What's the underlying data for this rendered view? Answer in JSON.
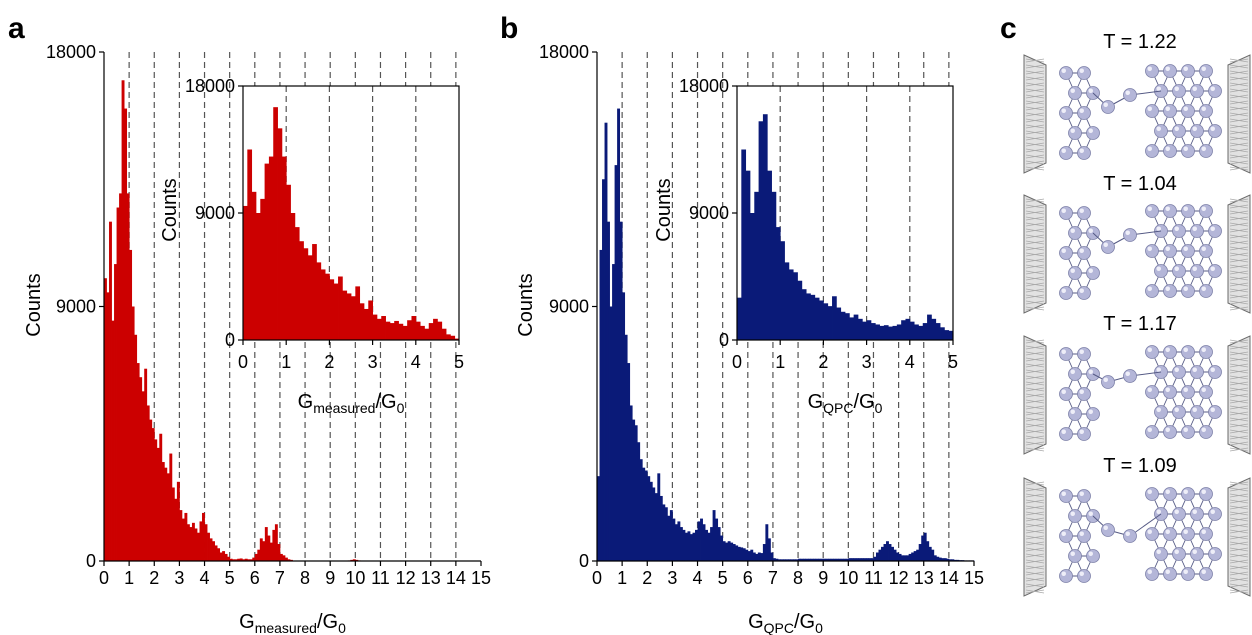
{
  "panels": {
    "a": "a",
    "b": "b",
    "c": "c"
  },
  "colors": {
    "red": "#cc0000",
    "navy": "#0a1a78",
    "atom": "#b4b6d8",
    "electrode": "#a9a9a9"
  },
  "chart_data": [
    {
      "id": "a-main",
      "type": "bar",
      "color": "#cc0000",
      "xlabel_main": "G",
      "xlabel_sub": "measured",
      "xlabel_tail": "/G",
      "xlabel_tail_sub": "0",
      "ylabel": "Counts",
      "xlim": [
        0,
        15
      ],
      "ylim": [
        0,
        18000
      ],
      "xticks": [
        0,
        1,
        2,
        3,
        4,
        5,
        6,
        7,
        8,
        9,
        10,
        11,
        12,
        13,
        14,
        15
      ],
      "yticks": [
        0,
        9000,
        18000
      ],
      "ytick_labels": [
        "0",
        "9000",
        "18000"
      ],
      "gridlines_x": [
        1,
        2,
        3,
        4,
        5,
        6,
        7,
        8,
        9,
        10,
        11,
        12,
        13,
        14
      ],
      "x": [
        0.05,
        0.15,
        0.25,
        0.35,
        0.45,
        0.55,
        0.65,
        0.75,
        0.85,
        0.95,
        1.05,
        1.15,
        1.25,
        1.35,
        1.45,
        1.55,
        1.65,
        1.75,
        1.85,
        1.95,
        2.05,
        2.15,
        2.25,
        2.35,
        2.45,
        2.55,
        2.65,
        2.75,
        2.85,
        2.95,
        3.05,
        3.15,
        3.25,
        3.35,
        3.45,
        3.55,
        3.65,
        3.75,
        3.85,
        3.95,
        4.05,
        4.15,
        4.25,
        4.35,
        4.45,
        4.55,
        4.65,
        4.75,
        4.85,
        4.95,
        5.05,
        5.15,
        5.25,
        5.35,
        5.45,
        5.55,
        5.65,
        5.75,
        5.85,
        5.95,
        6.05,
        6.15,
        6.25,
        6.35,
        6.45,
        6.55,
        6.65,
        6.75,
        6.85,
        6.95,
        7.05,
        7.15,
        7.25,
        7.35,
        7.45,
        9.75,
        9.85,
        9.95,
        10.05,
        10.15
      ],
      "values": [
        10000,
        9500,
        12000,
        8500,
        10500,
        12500,
        13000,
        17000,
        16000,
        13000,
        11000,
        9000,
        8000,
        7000,
        6500,
        6000,
        6800,
        5500,
        5000,
        4700,
        4300,
        4000,
        4500,
        3500,
        3300,
        3100,
        3800,
        2600,
        2200,
        2800,
        1800,
        1500,
        1700,
        1300,
        1200,
        1350,
        1150,
        1000,
        1400,
        1700,
        1300,
        1000,
        800,
        700,
        550,
        450,
        300,
        350,
        250,
        150,
        80,
        60,
        60,
        80,
        90,
        60,
        80,
        60,
        60,
        120,
        250,
        400,
        800,
        700,
        1200,
        900,
        650,
        1100,
        1300,
        600,
        250,
        200,
        120,
        60,
        40,
        20,
        40,
        60,
        40,
        20
      ]
    },
    {
      "id": "a-inset",
      "type": "bar",
      "color": "#cc0000",
      "xlabel_main": "G",
      "xlabel_sub": "measured",
      "xlabel_tail": "/G",
      "xlabel_tail_sub": "0",
      "ylabel": "Counts",
      "xlim": [
        0,
        5
      ],
      "ylim": [
        0,
        18000
      ],
      "xticks": [
        0,
        1,
        2,
        3,
        4,
        5
      ],
      "yticks": [
        0,
        9000,
        18000
      ],
      "ytick_labels": [
        "0",
        "9000",
        "18000"
      ],
      "gridlines_x": [
        1,
        2,
        3,
        4
      ],
      "x": [
        0.05,
        0.15,
        0.25,
        0.35,
        0.45,
        0.55,
        0.65,
        0.75,
        0.85,
        0.95,
        1.05,
        1.15,
        1.25,
        1.35,
        1.45,
        1.55,
        1.65,
        1.75,
        1.85,
        1.95,
        2.05,
        2.15,
        2.25,
        2.35,
        2.45,
        2.55,
        2.65,
        2.75,
        2.85,
        2.95,
        3.05,
        3.15,
        3.25,
        3.35,
        3.45,
        3.55,
        3.65,
        3.75,
        3.85,
        3.95,
        4.05,
        4.15,
        4.25,
        4.35,
        4.45,
        4.55,
        4.65,
        4.75,
        4.85,
        4.95
      ],
      "values": [
        9500,
        13500,
        10500,
        9000,
        10000,
        12500,
        13000,
        16500,
        15000,
        13000,
        11000,
        9000,
        8000,
        7000,
        6500,
        6000,
        6800,
        5500,
        5000,
        4700,
        4300,
        4000,
        4500,
        3500,
        3300,
        3100,
        3800,
        2600,
        2200,
        2800,
        1800,
        1500,
        1700,
        1300,
        1200,
        1350,
        1150,
        1000,
        1400,
        1700,
        1300,
        1000,
        800,
        1200,
        1500,
        1300,
        800,
        400,
        300,
        100
      ]
    },
    {
      "id": "b-main",
      "type": "bar",
      "color": "#0a1a78",
      "xlabel_main": "G",
      "xlabel_sub": "QPC",
      "xlabel_tail": "/G",
      "xlabel_tail_sub": "0",
      "ylabel": "Counts",
      "xlim": [
        0,
        15
      ],
      "ylim": [
        0,
        18000
      ],
      "xticks": [
        0,
        1,
        2,
        3,
        4,
        5,
        6,
        7,
        8,
        9,
        10,
        11,
        12,
        13,
        14,
        15
      ],
      "yticks": [
        0,
        9000,
        18000
      ],
      "ytick_labels": [
        "0",
        "9000",
        "18000"
      ],
      "gridlines_x": [
        1,
        2,
        3,
        4,
        5,
        6,
        7,
        8,
        9,
        10,
        11,
        12,
        13,
        14
      ],
      "x": [
        0.05,
        0.15,
        0.25,
        0.35,
        0.45,
        0.55,
        0.65,
        0.75,
        0.85,
        0.95,
        1.05,
        1.15,
        1.25,
        1.35,
        1.45,
        1.55,
        1.65,
        1.75,
        1.85,
        1.95,
        2.05,
        2.15,
        2.25,
        2.35,
        2.45,
        2.55,
        2.65,
        2.75,
        2.85,
        2.95,
        3.05,
        3.15,
        3.25,
        3.35,
        3.45,
        3.55,
        3.65,
        3.75,
        3.85,
        3.95,
        4.05,
        4.15,
        4.25,
        4.35,
        4.45,
        4.55,
        4.65,
        4.75,
        4.85,
        4.95,
        5.05,
        5.15,
        5.25,
        5.35,
        5.45,
        5.55,
        5.65,
        5.75,
        5.85,
        5.95,
        6.05,
        6.15,
        6.25,
        6.35,
        6.45,
        6.55,
        6.65,
        6.75,
        6.85,
        6.95,
        7.05,
        7.15,
        7.25,
        7.35,
        7.45,
        7.55,
        7.65,
        7.75,
        7.85,
        7.95,
        8.05,
        8.15,
        8.25,
        8.35,
        8.45,
        8.55,
        8.65,
        8.75,
        8.85,
        8.95,
        9.05,
        9.15,
        9.25,
        9.35,
        9.45,
        9.55,
        9.65,
        9.75,
        9.85,
        9.95,
        10.05,
        10.15,
        10.25,
        10.35,
        10.45,
        10.55,
        10.65,
        10.75,
        10.85,
        10.95,
        11.05,
        11.15,
        11.25,
        11.35,
        11.45,
        11.55,
        11.65,
        11.75,
        11.85,
        11.95,
        12.05,
        12.15,
        12.25,
        12.35,
        12.45,
        12.55,
        12.65,
        12.75,
        12.85,
        12.95,
        13.05,
        13.15,
        13.25,
        13.35,
        13.45,
        13.55,
        13.65,
        13.75,
        13.85,
        13.95,
        14.05,
        14.15,
        14.25,
        14.35,
        14.45,
        14.55,
        14.65,
        14.75,
        14.85,
        14.95
      ],
      "values": [
        3000,
        11000,
        13500,
        15500,
        12000,
        9000,
        10500,
        14000,
        16000,
        12000,
        9500,
        8000,
        7000,
        5500,
        5000,
        4800,
        4200,
        3600,
        3300,
        3200,
        3000,
        2800,
        2600,
        2400,
        3100,
        2300,
        2000,
        1900,
        1600,
        1800,
        1500,
        1300,
        1400,
        1200,
        1100,
        1000,
        1050,
        950,
        1000,
        1100,
        1400,
        1500,
        1300,
        1100,
        1000,
        1200,
        1800,
        1500,
        1200,
        900,
        700,
        650,
        700,
        650,
        600,
        550,
        500,
        480,
        450,
        400,
        350,
        400,
        300,
        250,
        300,
        280,
        600,
        1300,
        800,
        300,
        100,
        80,
        60,
        60,
        60,
        60,
        60,
        60,
        60,
        60,
        80,
        80,
        80,
        80,
        80,
        80,
        80,
        80,
        80,
        80,
        80,
        80,
        80,
        80,
        80,
        80,
        80,
        80,
        80,
        80,
        100,
        100,
        100,
        100,
        100,
        100,
        100,
        100,
        100,
        100,
        150,
        300,
        400,
        500,
        600,
        700,
        600,
        500,
        400,
        300,
        250,
        200,
        200,
        200,
        250,
        300,
        350,
        400,
        600,
        900,
        1000,
        700,
        500,
        400,
        200,
        150,
        120,
        100,
        100,
        80,
        60,
        60,
        40,
        40,
        30,
        30,
        20,
        20,
        20,
        20
      ]
    },
    {
      "id": "b-inset",
      "type": "bar",
      "color": "#0a1a78",
      "xlabel_main": "G",
      "xlabel_sub": "QPC",
      "xlabel_tail": "/G",
      "xlabel_tail_sub": "0",
      "ylabel": "Counts",
      "xlim": [
        0,
        5
      ],
      "ylim": [
        0,
        18000
      ],
      "xticks": [
        0,
        1,
        2,
        3,
        4,
        5
      ],
      "yticks": [
        0,
        9000,
        18000
      ],
      "ytick_labels": [
        "0",
        "9000",
        "18000"
      ],
      "gridlines_x": [
        1,
        2,
        3,
        4
      ],
      "x": [
        0.05,
        0.15,
        0.25,
        0.35,
        0.45,
        0.55,
        0.65,
        0.75,
        0.85,
        0.95,
        1.05,
        1.15,
        1.25,
        1.35,
        1.45,
        1.55,
        1.65,
        1.75,
        1.85,
        1.95,
        2.05,
        2.15,
        2.25,
        2.35,
        2.45,
        2.55,
        2.65,
        2.75,
        2.85,
        2.95,
        3.05,
        3.15,
        3.25,
        3.35,
        3.45,
        3.55,
        3.65,
        3.75,
        3.85,
        3.95,
        4.05,
        4.15,
        4.25,
        4.35,
        4.45,
        4.55,
        4.65,
        4.75,
        4.85,
        4.95
      ],
      "values": [
        3000,
        13500,
        12000,
        9000,
        10500,
        15500,
        16000,
        12000,
        10500,
        8000,
        7000,
        5500,
        5000,
        4800,
        4200,
        3600,
        3300,
        3200,
        3000,
        2800,
        2600,
        2400,
        3100,
        2300,
        2000,
        1900,
        1600,
        1800,
        1500,
        1300,
        1400,
        1200,
        1100,
        1000,
        1050,
        950,
        1000,
        1100,
        1400,
        1500,
        1300,
        1100,
        1000,
        1200,
        1800,
        1500,
        1200,
        900,
        700,
        650
      ]
    }
  ],
  "structures": {
    "labels": [
      "T = 1.22",
      "T = 1.04",
      "T = 1.17",
      "T = 1.09"
    ]
  }
}
